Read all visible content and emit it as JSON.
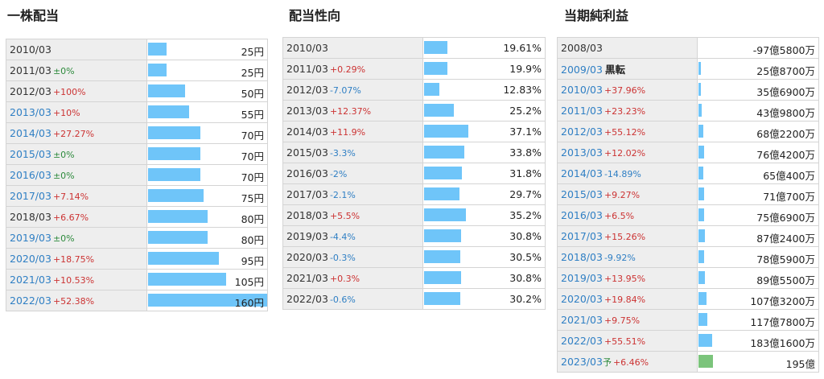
{
  "sections": {
    "dividend": {
      "title": "一株配当",
      "rows": [
        {
          "year": "2010/03",
          "change": "",
          "change_color": "",
          "value": "25円",
          "ratio": 0.156,
          "year_color": "black"
        },
        {
          "year": "2011/03",
          "change": "±0%",
          "change_color": "green",
          "value": "25円",
          "ratio": 0.156,
          "year_color": "black"
        },
        {
          "year": "2012/03",
          "change": "+100%",
          "change_color": "red",
          "value": "50円",
          "ratio": 0.3125,
          "year_color": "black"
        },
        {
          "year": "2013/03",
          "change": "+10%",
          "change_color": "red",
          "value": "55円",
          "ratio": 0.344,
          "year_color": "blue"
        },
        {
          "year": "2014/03",
          "change": "+27.27%",
          "change_color": "red",
          "value": "70円",
          "ratio": 0.4375,
          "year_color": "blue"
        },
        {
          "year": "2015/03",
          "change": "±0%",
          "change_color": "green",
          "value": "70円",
          "ratio": 0.4375,
          "year_color": "blue"
        },
        {
          "year": "2016/03",
          "change": "±0%",
          "change_color": "green",
          "value": "70円",
          "ratio": 0.4375,
          "year_color": "blue"
        },
        {
          "year": "2017/03",
          "change": "+7.14%",
          "change_color": "red",
          "value": "75円",
          "ratio": 0.469,
          "year_color": "blue"
        },
        {
          "year": "2018/03",
          "change": "+6.67%",
          "change_color": "red",
          "value": "80円",
          "ratio": 0.5,
          "year_color": "black"
        },
        {
          "year": "2019/03",
          "change": "±0%",
          "change_color": "green",
          "value": "80円",
          "ratio": 0.5,
          "year_color": "blue"
        },
        {
          "year": "2020/03",
          "change": "+18.75%",
          "change_color": "red",
          "value": "95円",
          "ratio": 0.594,
          "year_color": "blue"
        },
        {
          "year": "2021/03",
          "change": "+10.53%",
          "change_color": "red",
          "value": "105円",
          "ratio": 0.656,
          "year_color": "blue"
        },
        {
          "year": "2022/03",
          "change": "+52.38%",
          "change_color": "red",
          "value": "160円",
          "ratio": 1.0,
          "year_color": "blue"
        }
      ]
    },
    "payout": {
      "title": "配当性向",
      "rows": [
        {
          "year": "2010/03",
          "change": "",
          "change_color": "",
          "value": "19.61%",
          "ratio": 0.53,
          "year_color": "black"
        },
        {
          "year": "2011/03",
          "change": "+0.29%",
          "change_color": "red",
          "value": "19.9%",
          "ratio": 0.536,
          "year_color": "black"
        },
        {
          "year": "2012/03",
          "change": "-7.07%",
          "change_color": "blue",
          "value": "12.83%",
          "ratio": 0.346,
          "year_color": "black"
        },
        {
          "year": "2013/03",
          "change": "+12.37%",
          "change_color": "red",
          "value": "25.2%",
          "ratio": 0.679,
          "year_color": "black"
        },
        {
          "year": "2014/03",
          "change": "+11.9%",
          "change_color": "red",
          "value": "37.1%",
          "ratio": 1.0,
          "year_color": "black"
        },
        {
          "year": "2015/03",
          "change": "-3.3%",
          "change_color": "blue",
          "value": "33.8%",
          "ratio": 0.911,
          "year_color": "black"
        },
        {
          "year": "2016/03",
          "change": "-2%",
          "change_color": "blue",
          "value": "31.8%",
          "ratio": 0.857,
          "year_color": "black"
        },
        {
          "year": "2017/03",
          "change": "-2.1%",
          "change_color": "blue",
          "value": "29.7%",
          "ratio": 0.8,
          "year_color": "black"
        },
        {
          "year": "2018/03",
          "change": "+5.5%",
          "change_color": "red",
          "value": "35.2%",
          "ratio": 0.949,
          "year_color": "black"
        },
        {
          "year": "2019/03",
          "change": "-4.4%",
          "change_color": "blue",
          "value": "30.8%",
          "ratio": 0.83,
          "year_color": "black"
        },
        {
          "year": "2020/03",
          "change": "-0.3%",
          "change_color": "blue",
          "value": "30.5%",
          "ratio": 0.822,
          "year_color": "black"
        },
        {
          "year": "2021/03",
          "change": "+0.3%",
          "change_color": "red",
          "value": "30.8%",
          "ratio": 0.83,
          "year_color": "black"
        },
        {
          "year": "2022/03",
          "change": "-0.6%",
          "change_color": "blue",
          "value": "30.2%",
          "ratio": 0.814,
          "year_color": "black"
        }
      ]
    },
    "net_income": {
      "title": "当期純利益",
      "rows": [
        {
          "year": "2008/03",
          "change": "",
          "change_color": "",
          "tag": "",
          "tag_style": "",
          "value": "-97億5800万",
          "ratio": 0,
          "year_color": "black"
        },
        {
          "year": "2009/03",
          "change": "",
          "change_color": "",
          "tag": "黒転",
          "tag_style": "bold",
          "value": "25億8700万",
          "ratio": 0.018,
          "year_color": "blue"
        },
        {
          "year": "2010/03",
          "change": "+37.96%",
          "change_color": "red",
          "tag": "",
          "tag_style": "",
          "value": "35億6900万",
          "ratio": 0.025,
          "year_color": "blue"
        },
        {
          "year": "2011/03",
          "change": "+23.23%",
          "change_color": "red",
          "tag": "",
          "tag_style": "",
          "value": "43億9800万",
          "ratio": 0.031,
          "year_color": "blue"
        },
        {
          "year": "2012/03",
          "change": "+55.12%",
          "change_color": "red",
          "tag": "",
          "tag_style": "",
          "value": "68億2200万",
          "ratio": 0.048,
          "year_color": "blue"
        },
        {
          "year": "2013/03",
          "change": "+12.02%",
          "change_color": "red",
          "tag": "",
          "tag_style": "",
          "value": "76億4200万",
          "ratio": 0.053,
          "year_color": "blue"
        },
        {
          "year": "2014/03",
          "change": "-14.89%",
          "change_color": "blue",
          "tag": "",
          "tag_style": "",
          "value": "65億400万",
          "ratio": 0.045,
          "year_color": "blue"
        },
        {
          "year": "2015/03",
          "change": "+9.27%",
          "change_color": "red",
          "tag": "",
          "tag_style": "",
          "value": "71億700万",
          "ratio": 0.05,
          "year_color": "blue"
        },
        {
          "year": "2016/03",
          "change": "+6.5%",
          "change_color": "red",
          "tag": "",
          "tag_style": "",
          "value": "75億6900万",
          "ratio": 0.053,
          "year_color": "blue"
        },
        {
          "year": "2017/03",
          "change": "+15.26%",
          "change_color": "red",
          "tag": "",
          "tag_style": "",
          "value": "87億2400万",
          "ratio": 0.061,
          "year_color": "blue"
        },
        {
          "year": "2018/03",
          "change": "-9.92%",
          "change_color": "blue",
          "tag": "",
          "tag_style": "",
          "value": "78億5900万",
          "ratio": 0.055,
          "year_color": "blue"
        },
        {
          "year": "2019/03",
          "change": "+13.95%",
          "change_color": "red",
          "tag": "",
          "tag_style": "",
          "value": "89億5500万",
          "ratio": 0.062,
          "year_color": "blue"
        },
        {
          "year": "2020/03",
          "change": "+19.84%",
          "change_color": "red",
          "tag": "",
          "tag_style": "",
          "value": "107億3200万",
          "ratio": 0.075,
          "year_color": "blue"
        },
        {
          "year": "2021/03",
          "change": "+9.75%",
          "change_color": "red",
          "tag": "",
          "tag_style": "",
          "value": "117億7800万",
          "ratio": 0.082,
          "year_color": "blue"
        },
        {
          "year": "2022/03",
          "change": "+55.51%",
          "change_color": "red",
          "tag": "",
          "tag_style": "",
          "value": "183億1600万",
          "ratio": 0.128,
          "year_color": "blue"
        },
        {
          "year": "2023/03",
          "change": "+6.46%",
          "change_color": "red",
          "tag": "予",
          "tag_style": "green",
          "value": "195億",
          "ratio": 0.136,
          "year_color": "blue",
          "forecast": true
        }
      ]
    }
  }
}
